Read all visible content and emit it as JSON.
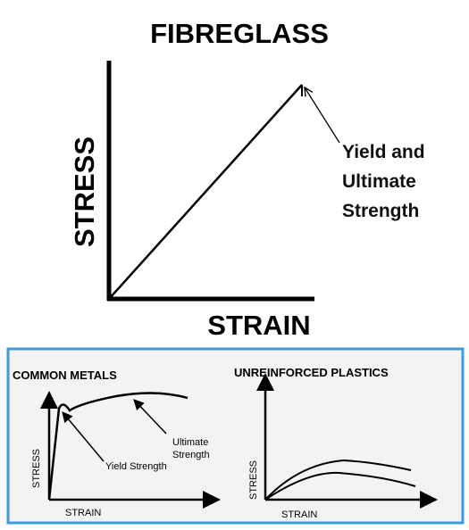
{
  "main": {
    "title": "FIBREGLASS",
    "y_label": "STRESS",
    "x_label": "STRAIN",
    "annotation": [
      "Yield and",
      "Ultimate",
      "Strength"
    ]
  },
  "panels": [
    {
      "title": "COMMON METALS",
      "y_label": "STRESS",
      "x_label": "STRAIN",
      "annotations": [
        [
          "Ultimate",
          "Strength"
        ],
        [
          "Yield Strength"
        ]
      ]
    },
    {
      "title": "UNREINFORCED PLASTICS",
      "y_label": "STRESS",
      "x_label": "STRAIN"
    }
  ]
}
